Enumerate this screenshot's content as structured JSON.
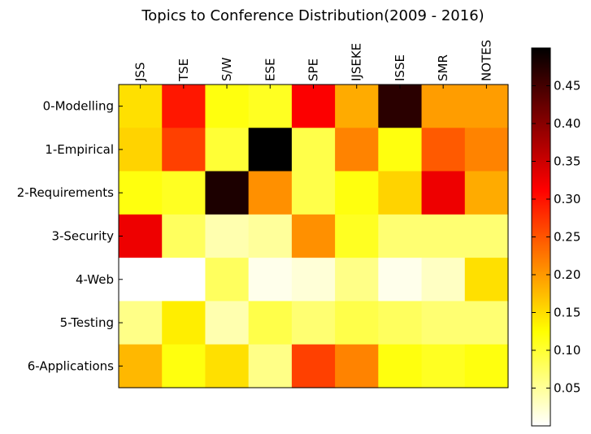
{
  "chart_data": {
    "type": "heatmap",
    "title": "Topics to Conference Distribution(2009 - 2016)",
    "columns": [
      "JSS",
      "TSE",
      "S/W",
      "ESE",
      "SPE",
      "IJSEKE",
      "ISSE",
      "SMR",
      "NOTES"
    ],
    "rows": [
      "0-Modelling",
      "1-Empirical",
      "2-Requirements",
      "3-Security",
      "4-Web",
      "5-Testing",
      "6-Applications"
    ],
    "values": [
      [
        0.15,
        0.3,
        0.12,
        0.11,
        0.32,
        0.19,
        0.47,
        0.2,
        0.2
      ],
      [
        0.16,
        0.27,
        0.1,
        0.5,
        0.09,
        0.22,
        0.12,
        0.25,
        0.22
      ],
      [
        0.12,
        0.11,
        0.48,
        0.21,
        0.09,
        0.12,
        0.16,
        0.33,
        0.19
      ],
      [
        0.33,
        0.08,
        0.04,
        0.05,
        0.21,
        0.11,
        0.07,
        0.07,
        0.07
      ],
      [
        0.0,
        0.0,
        0.08,
        0.01,
        0.02,
        0.06,
        0.01,
        0.03,
        0.15
      ],
      [
        0.06,
        0.14,
        0.04,
        0.09,
        0.07,
        0.09,
        0.08,
        0.07,
        0.07
      ],
      [
        0.18,
        0.12,
        0.15,
        0.06,
        0.27,
        0.22,
        0.12,
        0.11,
        0.12
      ]
    ],
    "colormap": "hot_r",
    "colorbar": {
      "min": 0.0,
      "max": 0.5,
      "ticks": [
        0.05,
        0.1,
        0.15,
        0.2,
        0.25,
        0.3,
        0.35,
        0.4,
        0.45
      ],
      "tick_labels": [
        "0.05",
        "0.10",
        "0.15",
        "0.20",
        "0.25",
        "0.30",
        "0.35",
        "0.40",
        "0.45"
      ]
    },
    "xaxis_position": "top"
  }
}
